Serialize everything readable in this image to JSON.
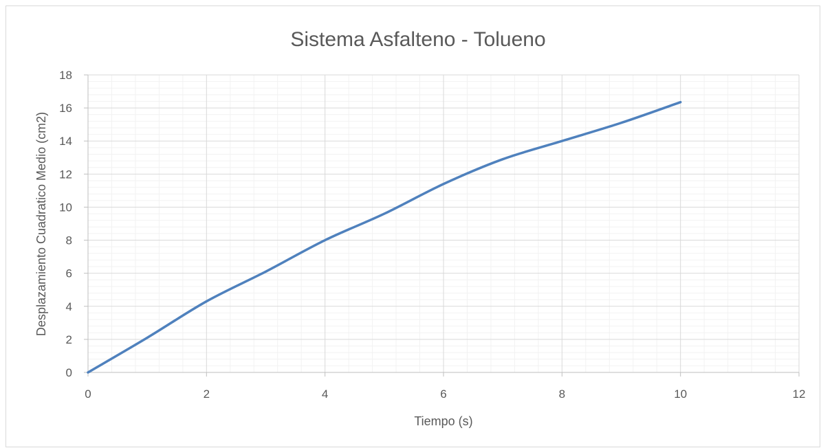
{
  "chart_data": {
    "type": "line",
    "title": "Sistema Asfalteno - Tolueno",
    "xlabel": "Tiempo (s)",
    "ylabel": "Desplazamiento Cuadratico Medio (cm2)",
    "xlim": [
      0,
      12
    ],
    "ylim": [
      0,
      18
    ],
    "x_ticks": [
      "0",
      "2",
      "4",
      "6",
      "8",
      "10",
      "12"
    ],
    "y_ticks": [
      "0",
      "2",
      "4",
      "6",
      "8",
      "10",
      "12",
      "14",
      "16",
      "18"
    ],
    "grid": true,
    "minor_grid": true,
    "legend": "none",
    "series": [
      {
        "color": "#4f81bd",
        "x": [
          0,
          1,
          2,
          3,
          4,
          5,
          6,
          7,
          8,
          9,
          10
        ],
        "y": [
          0,
          2.1,
          4.3,
          6.1,
          8.0,
          9.6,
          11.4,
          12.9,
          14.0,
          15.1,
          16.35
        ]
      }
    ],
    "colors": {
      "gridline": "#d9d9d9",
      "minor_gridline": "#f2f2f2",
      "axis": "#bfbfbf",
      "text": "#595959"
    }
  }
}
